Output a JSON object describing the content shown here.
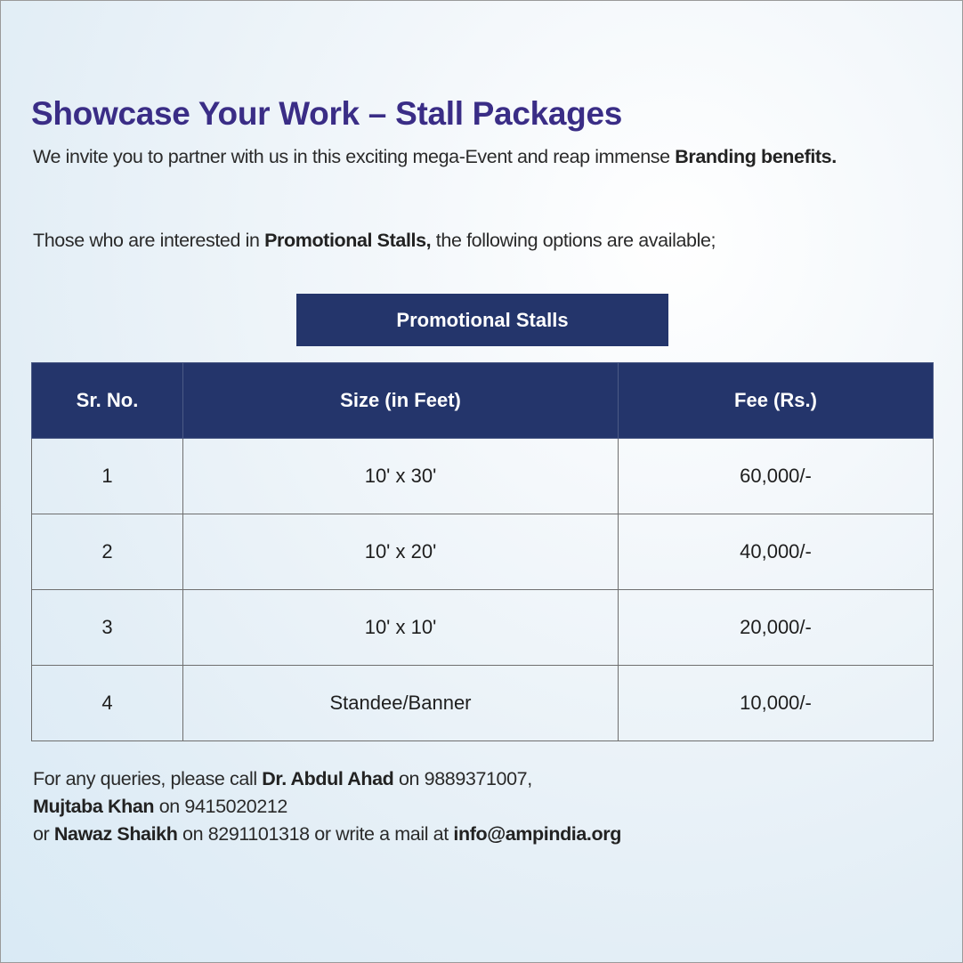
{
  "title": "Showcase Your Work – Stall Packages",
  "intro": [
    {
      "text": "We invite you to partner with us in this exciting mega-Event and reap immense "
    },
    {
      "text": "Branding benefits.",
      "bold": true
    }
  ],
  "interest": [
    {
      "text": "Those who are interested in "
    },
    {
      "text": "Promotional Stalls,",
      "bold": true
    },
    {
      "text": " the following options are available;"
    }
  ],
  "table": {
    "caption": "Promotional Stalls",
    "headers": [
      "Sr. No.",
      "Size (in Feet)",
      "Fee (Rs.)"
    ],
    "rows": [
      [
        "1",
        "10' x 30'",
        "60,000/-"
      ],
      [
        "2",
        "10' x 20'",
        "40,000/-"
      ],
      [
        "3",
        "10' x 10'",
        "20,000/-"
      ],
      [
        "4",
        "Standee/Banner",
        "10,000/-"
      ]
    ]
  },
  "contact": [
    [
      {
        "text": "For any queries, please call "
      },
      {
        "text": "Dr. Abdul Ahad",
        "bold": true
      },
      {
        "text": " on 9889371007,"
      }
    ],
    [
      {
        "text": "Mujtaba Khan",
        "bold": true
      },
      {
        "text": " on 9415020212"
      }
    ],
    [
      {
        "text": "or "
      },
      {
        "text": "Nawaz Shaikh",
        "bold": true
      },
      {
        "text": " on 8291101318 or write a mail at "
      },
      {
        "text": "info@ampindia.org",
        "bold": true
      }
    ]
  ],
  "colors": {
    "title": "#3a2d86",
    "header_bg": "#24356b"
  }
}
